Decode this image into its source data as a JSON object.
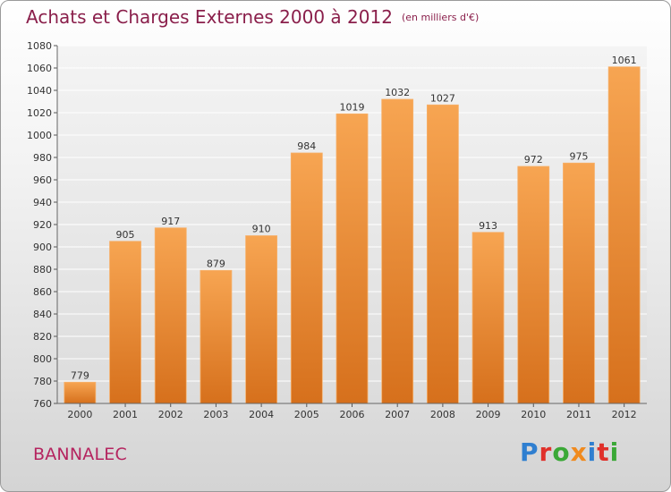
{
  "header": {
    "title": "Achats et Charges Externes 2000 à 2012",
    "unit": "(en milliers d'€)"
  },
  "footer": {
    "city": "BANNALEC",
    "logo_text": "Proxiti",
    "logo_colors": [
      "#2f7fd0",
      "#e0302a",
      "#3aa836",
      "#f08a1e",
      "#2f7fd0",
      "#e0302a",
      "#3aa836"
    ]
  },
  "colors": {
    "bar_top": "#f7a552",
    "bar_bottom": "#d6701c",
    "title": "#8a1f4b",
    "city": "#b5245f"
  },
  "chart_data": {
    "type": "bar",
    "title": "Achats et Charges Externes 2000 à 2012",
    "subtitle": "(en milliers d'€)",
    "xlabel": "",
    "ylabel": "",
    "categories": [
      "2000",
      "2001",
      "2002",
      "2003",
      "2004",
      "2005",
      "2006",
      "2007",
      "2008",
      "2009",
      "2010",
      "2011",
      "2012"
    ],
    "values": [
      779,
      905,
      917,
      879,
      910,
      984,
      1019,
      1032,
      1027,
      913,
      972,
      975,
      1061
    ],
    "ylim": [
      760,
      1080
    ],
    "yticks": [
      760,
      780,
      800,
      820,
      840,
      860,
      880,
      900,
      920,
      940,
      960,
      980,
      1000,
      1020,
      1040,
      1060,
      1080
    ],
    "grid": "horizontal",
    "data_labels": true,
    "legend": "none"
  }
}
